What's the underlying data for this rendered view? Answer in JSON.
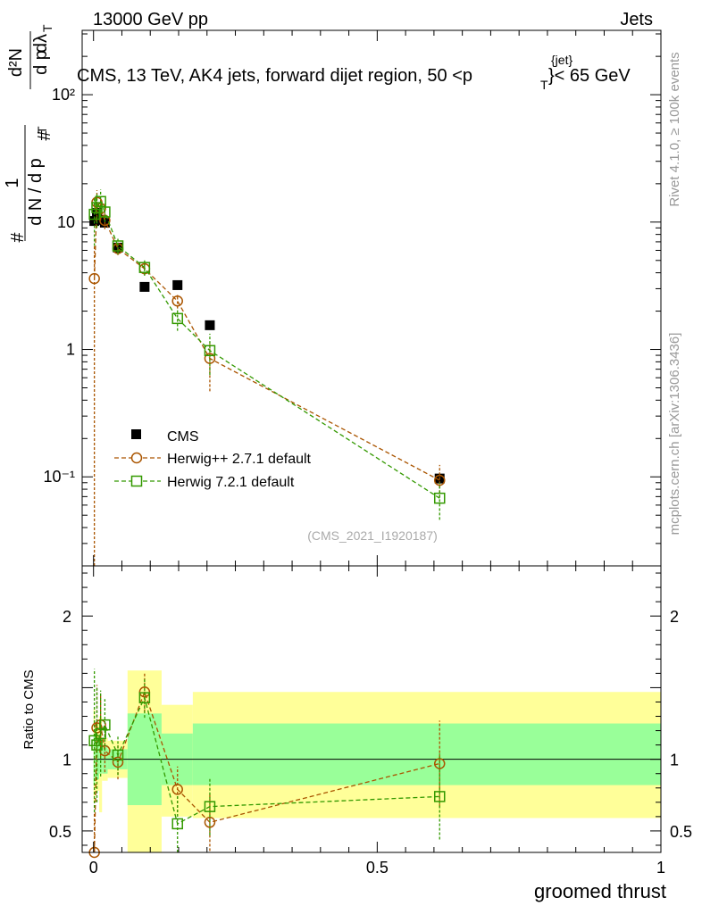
{
  "header": {
    "left": "13000 GeV pp",
    "right": "Jets"
  },
  "side_labels": {
    "rivet": "Rivet 4.1.0, ≥ 100k events",
    "mcplots": "mcplots.cern.ch [arXiv:1306.3436]"
  },
  "chart_data": [
    {
      "type": "scatter",
      "panel": "main",
      "title": "CMS, 13 TeV, AK4 jets, forward dijet region, 50 <p_T^{jet}< 65 GeV",
      "title_parts": {
        "prefix": "CMS, 13 TeV, AK4 jets, forward dijet region, 50 <p",
        "sub": "T",
        "sup": "{jet}",
        "suffix": "}< 65 GeV"
      },
      "ylabel": "1/(dN/dp_T) · d²N/(dp_T dλ)",
      "ylabel_parts": {
        "hash": "#",
        "one": "1",
        "dn": "d N / d p",
        "t": "T",
        "d2n": "d²N",
        "dpt": "d p",
        "dl": "dλ"
      },
      "xlabel": "groomed thrust",
      "yscale": "log",
      "xlim": [
        -0.02,
        1.0
      ],
      "ylim": [
        0.02,
        320
      ],
      "y_ticks": [
        {
          "value": 0.1,
          "label": "10⁻¹"
        },
        {
          "value": 1,
          "label": "1"
        },
        {
          "value": 10,
          "label": "10"
        },
        {
          "value": 100,
          "label": "10²"
        }
      ],
      "watermark": "(CMS_2021_I1920187)",
      "series": [
        {
          "name": "CMS",
          "marker": "filled-square",
          "color": "#000000",
          "x": [
            0.0015,
            0.006,
            0.0125,
            0.02,
            0.043,
            0.09,
            0.148,
            0.205,
            0.61
          ],
          "y": [
            10.2,
            11.8,
            10.4,
            9.9,
            6.3,
            3.1,
            3.2,
            1.55,
            0.097
          ]
        },
        {
          "name": "Herwig++ 2.7.1 default",
          "marker": "open-circle",
          "color": "#aa5500",
          "x": [
            0.0015,
            0.006,
            0.0125,
            0.02,
            0.043,
            0.09,
            0.148,
            0.205,
            0.61
          ],
          "y": [
            3.6,
            14.3,
            12.8,
            10.3,
            6.2,
            4.3,
            2.4,
            0.85,
            0.094
          ],
          "yerr_lo": [
            3.59,
            3.5,
            2.5,
            1.5,
            0.7,
            0.5,
            0.3,
            0.38,
            0.025
          ],
          "yerr_hi": [
            3.0,
            3.5,
            2.5,
            1.5,
            0.7,
            0.5,
            0.3,
            0.3,
            0.03
          ]
        },
        {
          "name": "Herwig 7.2.1 default",
          "marker": "open-square",
          "color": "#339900",
          "x": [
            0.0015,
            0.006,
            0.0125,
            0.02,
            0.043,
            0.09,
            0.148,
            0.205,
            0.61
          ],
          "y": [
            11.5,
            13.0,
            14.5,
            12.0,
            6.5,
            4.4,
            1.75,
            0.98,
            0.068
          ],
          "yerr_lo": [
            5.0,
            4.0,
            3.5,
            2.0,
            0.9,
            0.6,
            0.35,
            0.35,
            0.022
          ],
          "yerr_hi": [
            4.0,
            4.0,
            3.5,
            2.0,
            0.9,
            0.6,
            0.35,
            0.35,
            0.022
          ]
        }
      ]
    },
    {
      "type": "scatter",
      "panel": "ratio",
      "ylabel": "Ratio to CMS",
      "xlabel": "groomed thrust",
      "xlim": [
        -0.02,
        1.0
      ],
      "ylim": [
        0.35,
        2.35
      ],
      "y_ticks": [
        {
          "value": 0.5,
          "label": "0.5"
        },
        {
          "value": 1,
          "label": "1"
        },
        {
          "value": 2,
          "label": "2"
        }
      ],
      "x_ticks": [
        {
          "value": 0,
          "label": "0"
        },
        {
          "value": 0.5,
          "label": "0.5"
        },
        {
          "value": 1,
          "label": "1"
        }
      ],
      "reference_line": 1,
      "bands": {
        "edges": [
          0,
          0.003,
          0.01,
          0.015,
          0.025,
          0.06,
          0.12,
          0.175,
          0.235,
          1.0
        ],
        "inner_color": "#99ff99",
        "outer_color": "#ffff99",
        "inner_lo": [
          0.82,
          0.86,
          0.9,
          0.9,
          0.93,
          0.68,
          0.82,
          0.82,
          0.82
        ],
        "inner_hi": [
          1.18,
          1.14,
          1.1,
          1.1,
          1.07,
          1.32,
          1.18,
          1.25,
          1.25
        ],
        "outer_lo": [
          0.7,
          0.78,
          0.63,
          0.85,
          0.87,
          0.3,
          0.6,
          0.59,
          0.59
        ],
        "outer_hi": [
          1.35,
          1.25,
          1.3,
          1.15,
          1.13,
          1.62,
          1.38,
          1.47,
          1.47
        ]
      },
      "series": [
        {
          "name": "Herwig++ 2.7.1 default",
          "marker": "open-circle",
          "color": "#aa5500",
          "x": [
            0.0015,
            0.006,
            0.0125,
            0.02,
            0.043,
            0.09,
            0.148,
            0.205,
            0.61
          ],
          "y": [
            0.35,
            1.22,
            1.24,
            1.06,
            0.98,
            1.47,
            0.79,
            0.56,
            0.97
          ],
          "yerr": [
            0.3,
            0.3,
            0.22,
            0.15,
            0.12,
            0.14,
            0.16,
            0.2,
            0.3
          ]
        },
        {
          "name": "Herwig 7.2.1 default",
          "marker": "open-square",
          "color": "#339900",
          "x": [
            0.0015,
            0.006,
            0.0125,
            0.02,
            0.043,
            0.09,
            0.148,
            0.205,
            0.61
          ],
          "y": [
            1.13,
            1.1,
            1.18,
            1.24,
            1.03,
            1.43,
            0.55,
            0.67,
            0.74
          ],
          "yerr": [
            0.5,
            0.4,
            0.3,
            0.18,
            0.14,
            0.14,
            0.2,
            0.2,
            0.3
          ]
        }
      ]
    }
  ]
}
